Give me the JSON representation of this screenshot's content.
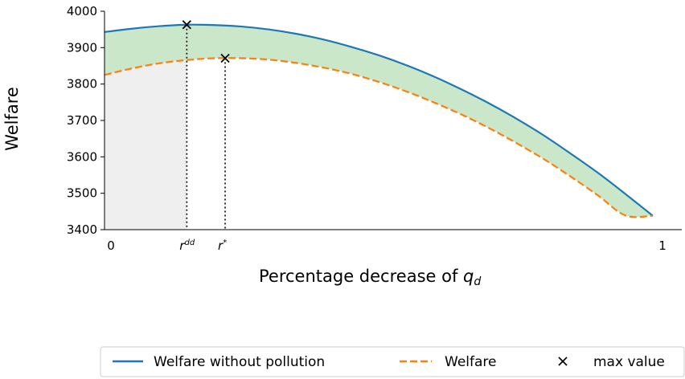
{
  "chart_data": {
    "type": "line",
    "title": "",
    "xlabel": "Percentage decrease of ",
    "xlabel_var": "q",
    "xlabel_sub": "d",
    "ylabel": "Welfare",
    "ylim": [
      3400,
      4000
    ],
    "xlim": [
      0,
      1
    ],
    "yticks": [
      3400,
      3500,
      3600,
      3700,
      3800,
      3900,
      4000
    ],
    "xtick_labels": [
      {
        "x": 0,
        "label": "0"
      },
      {
        "x": 1,
        "label": "1"
      }
    ],
    "marker_labels": [
      {
        "x": 0.15,
        "base": "r",
        "sup": "dd"
      },
      {
        "x": 0.22,
        "base": "r",
        "sup": "*"
      }
    ],
    "series": [
      {
        "name": "Welfare without pollution",
        "color": "#1f77b4",
        "style": "solid",
        "x": [
          0,
          0.05,
          0.1,
          0.15,
          0.2,
          0.25,
          0.3,
          0.35,
          0.4,
          0.45,
          0.5,
          0.55,
          0.6,
          0.65,
          0.7,
          0.75,
          0.8,
          0.85,
          0.9,
          0.95,
          1.0
        ],
        "y": [
          3943,
          3952,
          3959,
          3963,
          3962,
          3958,
          3950,
          3938,
          3922,
          3902,
          3879,
          3852,
          3821,
          3786,
          3748,
          3706,
          3660,
          3609,
          3556,
          3498,
          3438
        ]
      },
      {
        "name": "Welfare",
        "color": "#ff7f0e",
        "style": "dashed",
        "x": [
          0,
          0.05,
          0.1,
          0.15,
          0.2,
          0.25,
          0.3,
          0.35,
          0.4,
          0.45,
          0.5,
          0.55,
          0.6,
          0.65,
          0.7,
          0.75,
          0.8,
          0.85,
          0.9,
          0.95,
          1.0
        ],
        "y": [
          3825,
          3843,
          3857,
          3866,
          3871,
          3871,
          3867,
          3858,
          3845,
          3828,
          3806,
          3780,
          3750,
          3717,
          3680,
          3639,
          3595,
          3546,
          3494,
          3439,
          3438
        ]
      }
    ],
    "max_points": [
      {
        "x": 0.15,
        "y": 3963
      },
      {
        "x": 0.22,
        "y": 3871
      }
    ],
    "fills": {
      "between_color": "#2ca02c",
      "left_region_color": "#e8e8e8"
    },
    "legend": {
      "placement": "bottom",
      "entries": [
        {
          "label": "Welfare without pollution",
          "kind": "line-solid",
          "color": "#1f77b4"
        },
        {
          "label": "Welfare",
          "kind": "line-dashed",
          "color": "#ff7f0e"
        },
        {
          "label": "max value",
          "kind": "x-marker",
          "color": "#000000"
        }
      ]
    }
  }
}
